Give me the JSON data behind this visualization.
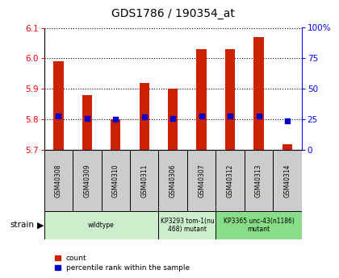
{
  "title": "GDS1786 / 190354_at",
  "samples": [
    "GSM40308",
    "GSM40309",
    "GSM40310",
    "GSM40311",
    "GSM40306",
    "GSM40307",
    "GSM40312",
    "GSM40313",
    "GSM40314"
  ],
  "count_values": [
    5.99,
    5.88,
    5.8,
    5.92,
    5.9,
    6.03,
    6.03,
    6.07,
    5.72
  ],
  "percentile_values": [
    28,
    26,
    25,
    27,
    26,
    28,
    28,
    28,
    24
  ],
  "ylim_left": [
    5.7,
    6.1
  ],
  "ylim_right": [
    0,
    100
  ],
  "yticks_left": [
    5.7,
    5.8,
    5.9,
    6.0,
    6.1
  ],
  "yticks_right": [
    0,
    25,
    50,
    75,
    100
  ],
  "ytick_labels_right": [
    "0",
    "25",
    "50",
    "75",
    "100%"
  ],
  "groups": [
    {
      "label": "wildtype",
      "start": 0,
      "end": 4,
      "color": "#cceecc"
    },
    {
      "label": "KP3293 tom-1(nu\n468) mutant",
      "start": 4,
      "end": 6,
      "color": "#cceecc"
    },
    {
      "label": "KP3365 unc-43(n1186)\nmutant",
      "start": 6,
      "end": 9,
      "color": "#88dd88"
    }
  ],
  "bar_color": "#cc2200",
  "percentile_color": "#0000cc",
  "bar_width": 0.35,
  "label_bg": "#cccccc"
}
